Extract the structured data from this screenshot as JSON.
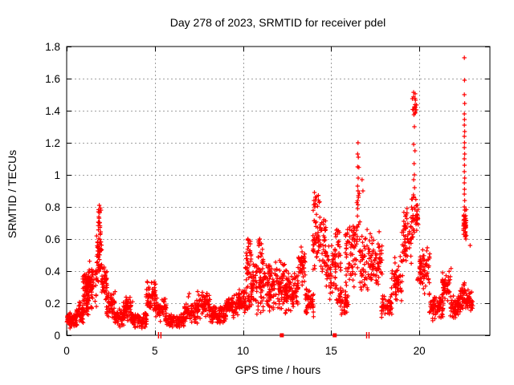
{
  "chart_data": {
    "type": "scatter",
    "title": "Day 278 of 2023, SRMTID for receiver pdel",
    "xlabel": "GPS time / hours",
    "ylabel": "SRMTID / TECUs",
    "xlim": [
      0,
      24
    ],
    "ylim": [
      0,
      1.8
    ],
    "xticks": [
      0,
      5,
      10,
      15,
      20
    ],
    "xtick_labels": [
      "0",
      "5",
      "10",
      "15",
      "20"
    ],
    "yticks": [
      0,
      0.2,
      0.4,
      0.6,
      0.8,
      1.0,
      1.2,
      1.4,
      1.6,
      1.8
    ],
    "ytick_labels": [
      "0",
      "0.2",
      "0.4",
      "0.6",
      "0.8",
      "1",
      "1.2",
      "1.4",
      "1.6",
      "1.8"
    ],
    "grid": "dashed",
    "legend_position": "none",
    "marker": {
      "glyph": "plus-cross",
      "color": "#ff0000",
      "size": 5
    },
    "colors": {
      "marker": "#ff0000",
      "grid": "#a0a0a0",
      "axis": "#000000",
      "background": "#ffffff"
    },
    "series_name": "SRMTID",
    "clusters": [
      [
        0.0,
        0.6,
        0.04,
        0.16,
        70,
        "mid"
      ],
      [
        0.55,
        0.95,
        0.06,
        0.22,
        45,
        "mid"
      ],
      [
        0.9,
        1.25,
        0.12,
        0.38,
        60,
        "uni"
      ],
      [
        1.05,
        1.45,
        0.2,
        0.47,
        55,
        "mid"
      ],
      [
        1.35,
        1.7,
        0.15,
        0.42,
        28,
        "uni"
      ],
      [
        1.7,
        2.0,
        0.3,
        0.68,
        55,
        "mid"
      ],
      [
        1.78,
        1.95,
        0.55,
        0.82,
        16,
        "uni"
      ],
      [
        1.95,
        2.3,
        0.2,
        0.45,
        40,
        "mid"
      ],
      [
        2.25,
        2.75,
        0.1,
        0.28,
        50,
        "mid"
      ],
      [
        2.7,
        3.3,
        0.05,
        0.17,
        60,
        "mid"
      ],
      [
        3.2,
        3.75,
        0.07,
        0.24,
        55,
        "mid"
      ],
      [
        3.7,
        4.55,
        0.04,
        0.15,
        80,
        "mid"
      ],
      [
        4.5,
        5.05,
        0.13,
        0.36,
        60,
        "mid"
      ],
      [
        5.0,
        5.65,
        0.08,
        0.24,
        55,
        "mid"
      ],
      [
        5.6,
        6.65,
        0.04,
        0.14,
        95,
        "mid"
      ],
      [
        6.6,
        7.45,
        0.07,
        0.22,
        75,
        "mid"
      ],
      [
        7.4,
        8.15,
        0.1,
        0.3,
        70,
        "mid"
      ],
      [
        8.1,
        9.05,
        0.06,
        0.2,
        85,
        "mid"
      ],
      [
        9.0,
        9.75,
        0.1,
        0.26,
        70,
        "mid"
      ],
      [
        9.7,
        10.15,
        0.13,
        0.3,
        45,
        "mid"
      ],
      [
        10.1,
        10.5,
        0.15,
        0.52,
        45,
        "uni"
      ],
      [
        10.15,
        10.45,
        0.45,
        0.6,
        12,
        "uni"
      ],
      [
        10.45,
        11.55,
        0.12,
        0.5,
        130,
        "mid"
      ],
      [
        10.85,
        11.15,
        0.45,
        0.6,
        12,
        "uni"
      ],
      [
        11.5,
        12.45,
        0.12,
        0.48,
        110,
        "mid"
      ],
      [
        12.4,
        13.15,
        0.15,
        0.42,
        85,
        "mid"
      ],
      [
        13.1,
        13.55,
        0.28,
        0.55,
        45,
        "mid"
      ],
      [
        13.5,
        14.0,
        0.1,
        0.32,
        50,
        "mid"
      ],
      [
        13.95,
        14.7,
        0.35,
        0.8,
        80,
        "mid"
      ],
      [
        14.0,
        14.35,
        0.75,
        0.9,
        12,
        "uni"
      ],
      [
        14.65,
        15.25,
        0.2,
        0.6,
        55,
        "mid"
      ],
      [
        15.2,
        15.55,
        0.2,
        0.66,
        40,
        "uni"
      ],
      [
        15.5,
        16.0,
        0.12,
        0.3,
        45,
        "mid"
      ],
      [
        15.8,
        16.0,
        0.3,
        0.67,
        22,
        "uni"
      ],
      [
        16.0,
        16.5,
        0.3,
        0.68,
        50,
        "uni"
      ],
      [
        16.45,
        16.62,
        0.6,
        1.05,
        10,
        "uni"
      ],
      [
        16.6,
        17.3,
        0.2,
        0.72,
        65,
        "mid"
      ],
      [
        17.25,
        17.9,
        0.28,
        0.66,
        60,
        "mid"
      ],
      [
        17.85,
        18.45,
        0.1,
        0.26,
        55,
        "mid"
      ],
      [
        18.4,
        19.05,
        0.18,
        0.5,
        60,
        "mid"
      ],
      [
        19.0,
        19.55,
        0.4,
        0.8,
        55,
        "mid"
      ],
      [
        19.55,
        19.95,
        0.55,
        0.9,
        45,
        "mid"
      ],
      [
        19.6,
        19.85,
        1.36,
        1.52,
        16,
        "uni"
      ],
      [
        19.9,
        20.6,
        0.25,
        0.55,
        70,
        "mid"
      ],
      [
        20.55,
        21.35,
        0.08,
        0.26,
        75,
        "mid"
      ],
      [
        21.3,
        21.8,
        0.18,
        0.42,
        50,
        "mid"
      ],
      [
        21.75,
        22.35,
        0.08,
        0.26,
        60,
        "mid"
      ],
      [
        22.3,
        22.6,
        0.16,
        0.35,
        35,
        "mid"
      ],
      [
        22.5,
        22.68,
        0.58,
        0.8,
        40,
        "mid"
      ],
      [
        22.6,
        23.05,
        0.14,
        0.3,
        45,
        "mid"
      ]
    ],
    "peaks": [
      [
        1.85,
        0.81
      ],
      [
        1.87,
        0.77
      ],
      [
        1.84,
        0.73
      ],
      [
        1.86,
        0.7
      ],
      [
        6.9,
        0.24
      ],
      [
        6.95,
        0.26
      ],
      [
        10.28,
        0.6
      ],
      [
        10.33,
        0.575
      ],
      [
        10.95,
        0.6
      ],
      [
        11.05,
        0.57
      ],
      [
        10.9,
        0.56
      ],
      [
        13.3,
        0.55
      ],
      [
        13.35,
        0.52
      ],
      [
        14.05,
        0.89
      ],
      [
        14.1,
        0.86
      ],
      [
        14.02,
        0.84
      ],
      [
        15.3,
        0.655
      ],
      [
        15.35,
        0.63
      ],
      [
        16.25,
        0.68
      ],
      [
        16.3,
        0.655
      ],
      [
        16.52,
        1.2
      ],
      [
        16.5,
        1.13
      ],
      [
        16.54,
        1.11
      ],
      [
        16.5,
        1.05
      ],
      [
        16.53,
        0.98
      ],
      [
        16.5,
        0.93
      ],
      [
        16.52,
        0.9
      ],
      [
        16.55,
        0.86
      ],
      [
        16.75,
        0.97
      ],
      [
        16.8,
        0.9
      ],
      [
        19.3,
        0.79
      ],
      [
        19.25,
        0.75
      ],
      [
        19.72,
        1.3
      ],
      [
        19.68,
        1.19
      ],
      [
        19.75,
        1.15
      ],
      [
        19.7,
        1.07
      ],
      [
        19.72,
        1.0
      ],
      [
        19.68,
        0.97
      ],
      [
        19.73,
        0.92
      ],
      [
        22.55,
        1.73
      ],
      [
        22.56,
        1.59
      ],
      [
        22.55,
        1.5
      ],
      [
        22.57,
        1.445
      ],
      [
        22.55,
        1.38
      ],
      [
        22.56,
        1.345
      ],
      [
        22.55,
        1.31
      ],
      [
        22.57,
        1.27
      ],
      [
        22.55,
        1.24
      ],
      [
        22.56,
        1.2
      ],
      [
        22.55,
        1.17
      ],
      [
        22.57,
        1.13
      ],
      [
        22.55,
        1.1
      ],
      [
        22.56,
        1.06
      ],
      [
        22.55,
        1.02
      ],
      [
        22.57,
        0.98
      ],
      [
        22.55,
        0.95
      ],
      [
        22.56,
        0.91
      ],
      [
        22.55,
        0.88
      ],
      [
        22.57,
        0.84
      ],
      [
        22.55,
        0.8
      ],
      [
        22.88,
        0.56
      ]
    ],
    "axis_markers": {
      "squares_x": [
        12.2,
        15.2
      ],
      "double_ticks_x": [
        5.3,
        17.1
      ],
      "color": "#ff0000"
    }
  }
}
